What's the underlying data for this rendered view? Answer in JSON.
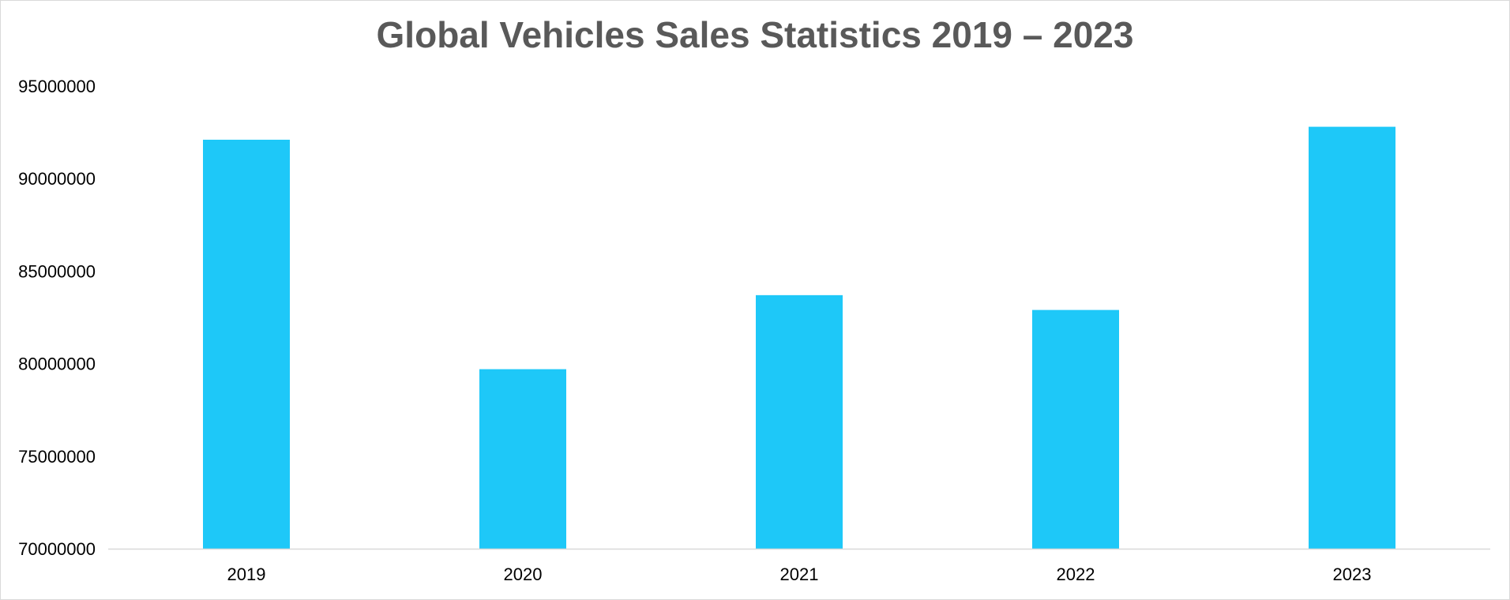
{
  "chart_data": {
    "type": "bar",
    "title": "Global Vehicles Sales Statistics 2019 – 2023",
    "xlabel": "",
    "ylabel": "",
    "categories": [
      "2019",
      "2020",
      "2021",
      "2022",
      "2023"
    ],
    "values": [
      92100000,
      79700000,
      83700000,
      82900000,
      92800000
    ],
    "ylim": [
      70000000,
      95000000
    ],
    "yticks": [
      70000000,
      75000000,
      80000000,
      85000000,
      90000000,
      95000000
    ],
    "ytick_labels": [
      "70000000",
      "75000000",
      "80000000",
      "85000000",
      "90000000",
      "95000000"
    ],
    "grid": false,
    "legend": "none",
    "bar_color": "#1EC8F8",
    "axis_color": "#d9d9d9"
  }
}
